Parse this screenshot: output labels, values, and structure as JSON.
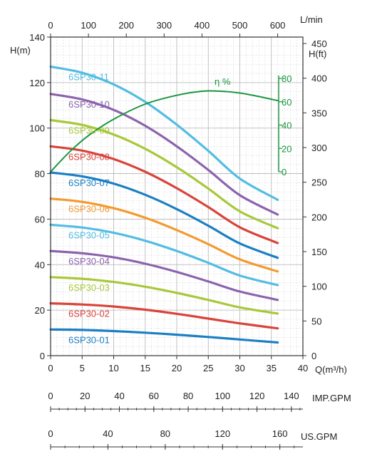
{
  "chart_data": {
    "type": "line",
    "x_axis": {
      "label": "Q(m³/h)",
      "range": [
        0,
        40
      ],
      "ticks": [
        0,
        5,
        10,
        15,
        20,
        25,
        30,
        35,
        40
      ]
    },
    "y_axis": {
      "label": "H(m)",
      "range": [
        0,
        140
      ],
      "ticks": [
        0,
        20,
        40,
        60,
        80,
        100,
        120,
        140
      ]
    },
    "top_axis": {
      "label": "L/min",
      "range": [
        0,
        666.7
      ],
      "ticks": [
        0,
        100,
        200,
        300,
        400,
        500,
        600
      ]
    },
    "right_axis": {
      "label": "H(ft)",
      "range": [
        0,
        459.3
      ],
      "ticks": [
        0,
        50,
        100,
        150,
        200,
        250,
        300,
        350,
        400,
        450
      ]
    },
    "efficiency_axis": {
      "label": "η %",
      "range": [
        0,
        80
      ],
      "ticks": [
        0,
        20,
        40,
        60,
        80
      ],
      "color": "#1a9641"
    },
    "imp_gpm_axis": {
      "label": "IMP.GPM",
      "range": [
        0,
        146.7
      ],
      "ticks": [
        0,
        20,
        40,
        60,
        80,
        100,
        120,
        140
      ]
    },
    "us_gpm_axis": {
      "label": "US.GPM",
      "range": [
        0,
        176.1
      ],
      "ticks": [
        0,
        40,
        80,
        120,
        160
      ]
    },
    "grid": true,
    "series": [
      {
        "name": "6SP30-01",
        "color": "#1b7fc4",
        "x": [
          0,
          5,
          10,
          15,
          20,
          25,
          30,
          36
        ],
        "y": [
          11.5,
          11.3,
          10.8,
          10.1,
          9.2,
          8.2,
          7.1,
          5.8
        ]
      },
      {
        "name": "6SP30-02",
        "color": "#d9433a",
        "x": [
          0,
          5,
          10,
          15,
          20,
          25,
          30,
          36
        ],
        "y": [
          23.0,
          22.5,
          21.6,
          20.2,
          18.4,
          16.3,
          14.2,
          12.0
        ]
      },
      {
        "name": "6SP30-03",
        "color": "#a8c83a",
        "x": [
          0,
          5,
          10,
          15,
          20,
          25,
          30,
          36
        ],
        "y": [
          34.5,
          33.8,
          32.4,
          30.3,
          27.6,
          24.5,
          21.2,
          18.5
        ]
      },
      {
        "name": "6SP30-04",
        "color": "#8b63ad",
        "x": [
          0,
          5,
          10,
          15,
          20,
          25,
          30,
          36
        ],
        "y": [
          46.0,
          45.0,
          43.2,
          40.4,
          36.8,
          32.6,
          28.2,
          24.5
        ]
      },
      {
        "name": "6SP30-05",
        "color": "#52bde2",
        "x": [
          0,
          5,
          10,
          15,
          20,
          25,
          30,
          36
        ],
        "y": [
          57.5,
          56.3,
          54.0,
          50.5,
          46.0,
          40.8,
          35.2,
          31.0
        ]
      },
      {
        "name": "6SP30-06",
        "color": "#f39a2e",
        "x": [
          0,
          5,
          10,
          15,
          20,
          25,
          30,
          36
        ],
        "y": [
          69.0,
          67.6,
          64.8,
          60.6,
          55.2,
          49.0,
          42.3,
          37.0
        ]
      },
      {
        "name": "6SP30-07",
        "color": "#1b7fc4",
        "x": [
          0,
          5,
          10,
          15,
          20,
          25,
          30,
          36
        ],
        "y": [
          80.5,
          78.8,
          75.6,
          70.7,
          64.4,
          57.1,
          49.3,
          43.0
        ]
      },
      {
        "name": "6SP30-08",
        "color": "#d9433a",
        "x": [
          0,
          5,
          10,
          15,
          20,
          25,
          30,
          36
        ],
        "y": [
          92.0,
          90.1,
          86.4,
          80.8,
          73.6,
          65.3,
          56.4,
          49.5
        ]
      },
      {
        "name": "6SP30-09",
        "color": "#a8c83a",
        "x": [
          0,
          5,
          10,
          15,
          20,
          25,
          30,
          36
        ],
        "y": [
          103.5,
          101.4,
          97.2,
          90.9,
          82.8,
          73.4,
          63.4,
          56.0
        ]
      },
      {
        "name": "6SP30-10",
        "color": "#8b63ad",
        "x": [
          0,
          5,
          10,
          15,
          20,
          25,
          30,
          36
        ],
        "y": [
          115.0,
          112.6,
          108.0,
          101.0,
          92.0,
          81.6,
          70.5,
          62.0
        ]
      },
      {
        "name": "6SP30-11",
        "color": "#52bde2",
        "x": [
          0,
          5,
          10,
          15,
          20,
          25,
          30,
          36
        ],
        "y": [
          127.0,
          124.3,
          119.2,
          111.5,
          101.5,
          90.0,
          77.8,
          68.5
        ]
      },
      {
        "name": "η %",
        "axis": "efficiency",
        "color": "#1a9641",
        "x": [
          0,
          3,
          6,
          10,
          15,
          20,
          24,
          27,
          30,
          33,
          36
        ],
        "y": [
          0,
          17,
          31,
          45,
          58,
          65.5,
          69,
          69,
          67.5,
          64.5,
          61
        ]
      }
    ]
  }
}
